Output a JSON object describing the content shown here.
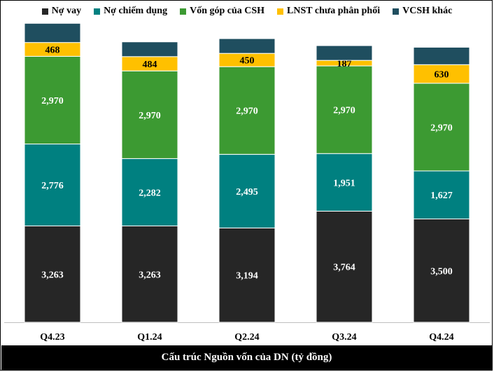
{
  "chart_data": {
    "type": "bar",
    "stacked": true,
    "title": "",
    "xlabel": "",
    "ylabel": "",
    "categories": [
      "Q4.23",
      "Q1.24",
      "Q2.24",
      "Q3.24",
      "Q4.24"
    ],
    "series": [
      {
        "name": "Nợ vay",
        "color": "#262626",
        "label_color": "#ffffff",
        "show_labels": true,
        "values": [
          3263,
          3263,
          3194,
          3764,
          3500
        ],
        "labels": [
          "3,263",
          "3,263",
          "3,194",
          "3,764",
          "3,500"
        ]
      },
      {
        "name": "Nợ chiếm dụng",
        "color": "#008080",
        "label_color": "#ffffff",
        "show_labels": true,
        "values": [
          2776,
          2282,
          2495,
          1951,
          1627
        ],
        "labels": [
          "2,776",
          "2,282",
          "2,495",
          "1,951",
          "1,627"
        ]
      },
      {
        "name": "Vốn góp của CSH",
        "color": "#3c9a32",
        "label_color": "#ffffff",
        "show_labels": true,
        "values": [
          2970,
          2970,
          2970,
          2970,
          2970
        ],
        "labels": [
          "2,970",
          "2,970",
          "2,970",
          "2,970",
          "2,970"
        ]
      },
      {
        "name": "LNST chưa phân phối",
        "color": "#ffc000",
        "label_color": "#000000",
        "show_labels": true,
        "values": [
          468,
          484,
          450,
          187,
          630
        ],
        "labels": [
          "468",
          "484",
          "450",
          "187",
          "630"
        ]
      },
      {
        "name": "VCSH khác",
        "color": "#1f4e5f",
        "label_color": "#ffffff",
        "show_labels": false,
        "values": [
          650,
          500,
          500,
          500,
          590
        ],
        "labels": [
          "",
          "",
          "",
          "",
          ""
        ]
      }
    ],
    "legend_position": "top",
    "grid": false,
    "ylim": [
      0,
      10300
    ]
  },
  "footer": {
    "caption": "Cấu trúc Nguồn vốn của DN (tỷ đồng)"
  }
}
